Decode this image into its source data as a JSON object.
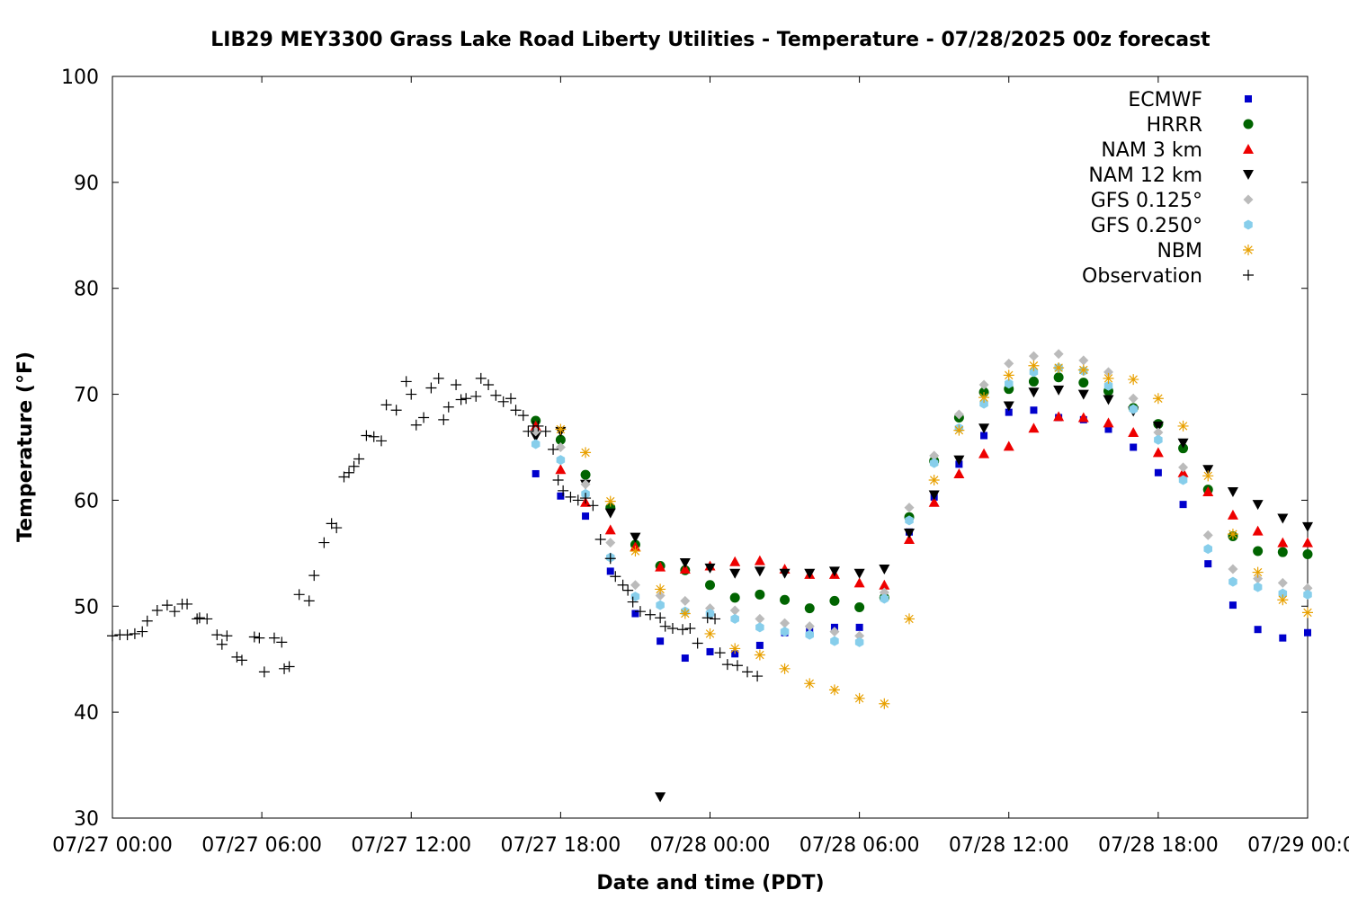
{
  "chart_data": {
    "type": "scatter",
    "title": "LIB29 MEY3300 Grass Lake Road Liberty Utilities - Temperature - 07/28/2025 00z forecast",
    "xlabel": "Date and time (PDT)",
    "ylabel": "Temperature (°F)",
    "x_unit": "hours since 07/27 00:00 PDT",
    "xlim": [
      0,
      48
    ],
    "ylim": [
      30,
      100
    ],
    "x_ticks": [
      {
        "value": 0,
        "label": "07/27 00:00"
      },
      {
        "value": 6,
        "label": "07/27 06:00"
      },
      {
        "value": 12,
        "label": "07/27 12:00"
      },
      {
        "value": 18,
        "label": "07/27 18:00"
      },
      {
        "value": 24,
        "label": "07/28 00:00"
      },
      {
        "value": 30,
        "label": "07/28 06:00"
      },
      {
        "value": 36,
        "label": "07/28 12:00"
      },
      {
        "value": 42,
        "label": "07/28 18:00"
      },
      {
        "value": 48,
        "label": "07/29 00:00"
      }
    ],
    "y_ticks": [
      30,
      40,
      50,
      60,
      70,
      80,
      90,
      100
    ],
    "grid": false,
    "legend_position": "top-right",
    "series": [
      {
        "name": "ECMWF",
        "marker": "square",
        "color": "#0000cc",
        "x": [
          17,
          18,
          19,
          20,
          21,
          22,
          23,
          24,
          25,
          26,
          27,
          28,
          29,
          30,
          31,
          32,
          33,
          34,
          35,
          36,
          37,
          38,
          39,
          40,
          41,
          42,
          43,
          44,
          45,
          46,
          47,
          48
        ],
        "y": [
          62.5,
          60.4,
          58.5,
          53.3,
          49.3,
          46.7,
          45.1,
          45.7,
          45.5,
          46.3,
          47.5,
          47.6,
          48.0,
          48.0,
          50.8,
          57.0,
          60.3,
          63.4,
          66.1,
          68.3,
          68.5,
          67.8,
          67.6,
          66.7,
          65.0,
          62.6,
          59.6,
          54.0,
          50.1,
          47.8,
          47.0,
          47.5
        ]
      },
      {
        "name": "HRRR",
        "marker": "circle",
        "color": "#006400",
        "x": [
          17,
          18,
          19,
          20,
          21,
          22,
          23,
          24,
          25,
          26,
          27,
          28,
          29,
          30,
          31,
          32,
          33,
          34,
          35,
          36,
          37,
          38,
          39,
          40,
          41,
          42,
          43,
          44,
          45,
          46,
          47,
          48
        ],
        "y": [
          67.5,
          65.7,
          62.4,
          59.3,
          55.8,
          53.8,
          53.4,
          52.0,
          50.8,
          51.1,
          50.6,
          49.8,
          50.5,
          49.9,
          50.8,
          58.4,
          63.7,
          67.8,
          70.2,
          70.5,
          71.2,
          71.6,
          71.1,
          70.3,
          68.7,
          67.2,
          64.9,
          61.0,
          56.6,
          55.2,
          55.1,
          54.9
        ]
      },
      {
        "name": "NAM 3 km",
        "marker": "triangle-up",
        "color": "#ee0000",
        "x": [
          17,
          18,
          19,
          20,
          21,
          22,
          23,
          24,
          25,
          26,
          27,
          28,
          29,
          30,
          31,
          32,
          33,
          34,
          35,
          36,
          37,
          38,
          39,
          40,
          41,
          42,
          43,
          44,
          45,
          46,
          47,
          48
        ],
        "y": [
          67.0,
          62.9,
          59.8,
          57.2,
          55.6,
          53.7,
          53.5,
          53.8,
          54.2,
          54.3,
          53.5,
          53.0,
          53.0,
          52.2,
          52.0,
          56.3,
          59.8,
          62.5,
          64.4,
          65.1,
          66.8,
          67.9,
          67.8,
          67.3,
          66.4,
          64.5,
          62.6,
          60.8,
          58.6,
          57.1,
          56.0,
          56.0
        ]
      },
      {
        "name": "NAM 12 km",
        "marker": "triangle-down",
        "color": "#000000",
        "x": [
          17,
          18,
          19,
          20,
          21,
          22,
          23,
          24,
          25,
          26,
          27,
          28,
          29,
          30,
          31,
          32,
          33,
          34,
          35,
          36,
          37,
          38,
          39,
          40,
          41,
          42,
          43,
          44,
          45,
          46,
          47,
          48
        ],
        "y": [
          66.0,
          66.5,
          61.5,
          58.8,
          56.5,
          32.0,
          54.1,
          53.6,
          53.1,
          53.3,
          53.1,
          53.1,
          53.3,
          53.1,
          53.5,
          56.9,
          60.5,
          63.8,
          66.8,
          68.9,
          70.2,
          70.4,
          70.0,
          69.5,
          68.4,
          67.0,
          65.4,
          62.9,
          60.8,
          59.6,
          58.3,
          57.5
        ]
      },
      {
        "name": "GFS 0.125°",
        "marker": "diamond",
        "color": "#bbbbbb",
        "x": [
          17,
          18,
          19,
          20,
          21,
          22,
          23,
          24,
          25,
          26,
          27,
          28,
          29,
          30,
          31,
          32,
          33,
          34,
          35,
          36,
          37,
          38,
          39,
          40,
          41,
          42,
          43,
          44,
          45,
          46,
          47,
          48
        ],
        "y": [
          66.5,
          65.0,
          61.5,
          56.0,
          52.0,
          51.0,
          50.5,
          49.8,
          49.6,
          48.8,
          48.4,
          48.1,
          47.6,
          47.2,
          51.3,
          59.3,
          64.2,
          68.1,
          70.9,
          72.9,
          73.6,
          73.8,
          73.2,
          72.1,
          69.6,
          66.4,
          63.1,
          56.7,
          53.5,
          52.6,
          52.2,
          51.7
        ]
      },
      {
        "name": "GFS 0.250°",
        "marker": "pentagon",
        "color": "#87ceeb",
        "x": [
          17,
          18,
          19,
          20,
          21,
          22,
          23,
          24,
          25,
          26,
          27,
          28,
          29,
          30,
          31,
          32,
          33,
          34,
          35,
          36,
          37,
          38,
          39,
          40,
          41,
          42,
          43,
          44,
          45,
          46,
          47,
          48
        ],
        "y": [
          65.3,
          63.8,
          60.6,
          54.6,
          50.9,
          50.1,
          49.5,
          49.3,
          48.8,
          48.0,
          47.6,
          47.3,
          46.7,
          46.6,
          50.7,
          58.1,
          63.5,
          66.8,
          69.1,
          71.0,
          72.1,
          72.5,
          72.2,
          70.8,
          68.6,
          65.7,
          61.9,
          55.4,
          52.3,
          51.8,
          51.2,
          51.1
        ]
      },
      {
        "name": "NBM",
        "marker": "asterisk",
        "color": "#e8a000",
        "x": [
          18,
          19,
          20,
          21,
          22,
          23,
          24,
          25,
          26,
          27,
          28,
          29,
          30,
          31,
          32,
          33,
          34,
          35,
          36,
          37,
          38,
          39,
          40,
          41,
          42,
          43,
          44,
          45,
          46,
          47,
          48
        ],
        "y": [
          66.7,
          64.5,
          59.9,
          55.2,
          51.6,
          49.3,
          47.4,
          46.0,
          45.4,
          44.1,
          42.7,
          42.1,
          41.3,
          40.8,
          48.8,
          61.9,
          66.6,
          69.7,
          71.8,
          72.7,
          72.5,
          72.3,
          71.5,
          71.4,
          69.6,
          67.0,
          62.3,
          56.8,
          53.2,
          50.6,
          49.4
        ]
      },
      {
        "name": "Observation",
        "marker": "plus",
        "color": "#000000",
        "x": [
          0.0,
          0.3,
          0.6,
          0.9,
          1.2,
          1.4,
          1.8,
          2.2,
          2.5,
          2.8,
          3.0,
          3.4,
          3.5,
          3.8,
          4.2,
          4.4,
          4.6,
          5.0,
          5.2,
          5.7,
          5.9,
          6.1,
          6.5,
          6.8,
          6.9,
          7.1,
          7.5,
          7.9,
          8.1,
          8.5,
          8.8,
          9.0,
          9.3,
          9.5,
          9.7,
          9.9,
          10.2,
          10.5,
          10.8,
          11.0,
          11.4,
          11.8,
          12.0,
          12.2,
          12.5,
          12.8,
          13.1,
          13.3,
          13.5,
          13.8,
          14.0,
          14.2,
          14.6,
          14.8,
          15.1,
          15.4,
          15.7,
          16.0,
          16.2,
          16.5,
          16.7,
          16.9,
          17.1,
          17.4,
          17.7,
          17.9,
          18.1,
          18.4,
          18.7,
          19.0,
          19.3,
          19.6,
          20.0,
          20.2,
          20.5,
          20.7,
          20.9,
          21.2,
          21.6,
          22.0,
          22.2,
          22.5,
          22.9,
          23.2,
          23.5,
          23.9,
          24.2,
          24.4,
          24.7,
          25.1,
          25.5,
          25.9
        ],
        "y": [
          47.2,
          47.3,
          47.3,
          47.4,
          47.6,
          48.6,
          49.6,
          50.1,
          49.5,
          50.2,
          50.2,
          48.8,
          48.9,
          48.8,
          47.3,
          46.4,
          47.2,
          45.2,
          44.9,
          47.1,
          47.0,
          43.8,
          47.0,
          46.6,
          44.1,
          44.3,
          51.1,
          50.5,
          52.9,
          56.0,
          57.8,
          57.4,
          62.2,
          62.6,
          63.2,
          63.9,
          66.1,
          66.0,
          65.6,
          69.0,
          68.5,
          71.2,
          70.0,
          67.1,
          67.8,
          70.6,
          71.5,
          67.6,
          68.8,
          70.9,
          69.5,
          69.6,
          69.8,
          71.5,
          70.9,
          69.9,
          69.3,
          69.6,
          68.5,
          68.0,
          66.5,
          67.0,
          67.0,
          66.5,
          64.8,
          61.9,
          60.9,
          60.3,
          60.0,
          60.2,
          59.5,
          56.3,
          54.5,
          52.8,
          52.0,
          51.5,
          50.4,
          49.5,
          49.2,
          48.9,
          48.1,
          47.9,
          47.8,
          47.9,
          46.5,
          48.9,
          48.8,
          45.6,
          44.5,
          44.4,
          43.8,
          43.4
        ]
      }
    ]
  }
}
